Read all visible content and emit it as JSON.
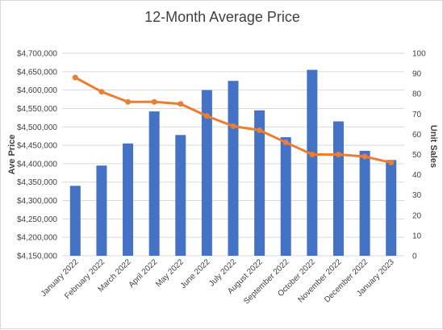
{
  "chart_data": {
    "type": "bar+line",
    "title": "12-Month Average Price",
    "categories": [
      "January 2022",
      "February 2022",
      "March 2022",
      "April 2022",
      "May 2022",
      "June 2022",
      "July 2022",
      "August 2022",
      "September 2022",
      "October 2022",
      "November 2022",
      "December 2022",
      "January 2023"
    ],
    "series": [
      {
        "name": "Avg Price",
        "type": "bar",
        "axis": "left",
        "color": "#4472c4",
        "values": [
          4340000,
          4395000,
          4455000,
          4542000,
          4478000,
          4600000,
          4625000,
          4545000,
          4472000,
          4655000,
          4515000,
          4435000,
          4410000
        ]
      },
      {
        "name": "Unit Sales",
        "type": "line",
        "axis": "right",
        "color": "#ed7d31",
        "values": [
          88,
          81,
          76,
          76,
          75,
          69,
          64,
          62,
          56,
          50,
          50,
          49,
          46
        ]
      }
    ],
    "ylabel": "Ave Price",
    "y2label": "Unit Sales",
    "ylim": [
      4150000,
      4700000
    ],
    "yticks": [
      "$4,150,000",
      "$4,200,000",
      "$4,250,000",
      "$4,300,000",
      "$4,350,000",
      "$4,400,000",
      "$4,450,000",
      "$4,500,000",
      "$4,550,000",
      "$4,600,000",
      "$4,650,000",
      "$4,700,000"
    ],
    "y2lim": [
      0,
      100
    ],
    "y2ticks": [
      "0",
      "10",
      "20",
      "30",
      "40",
      "50",
      "60",
      "70",
      "80",
      "90",
      "100"
    ],
    "grid": true
  }
}
